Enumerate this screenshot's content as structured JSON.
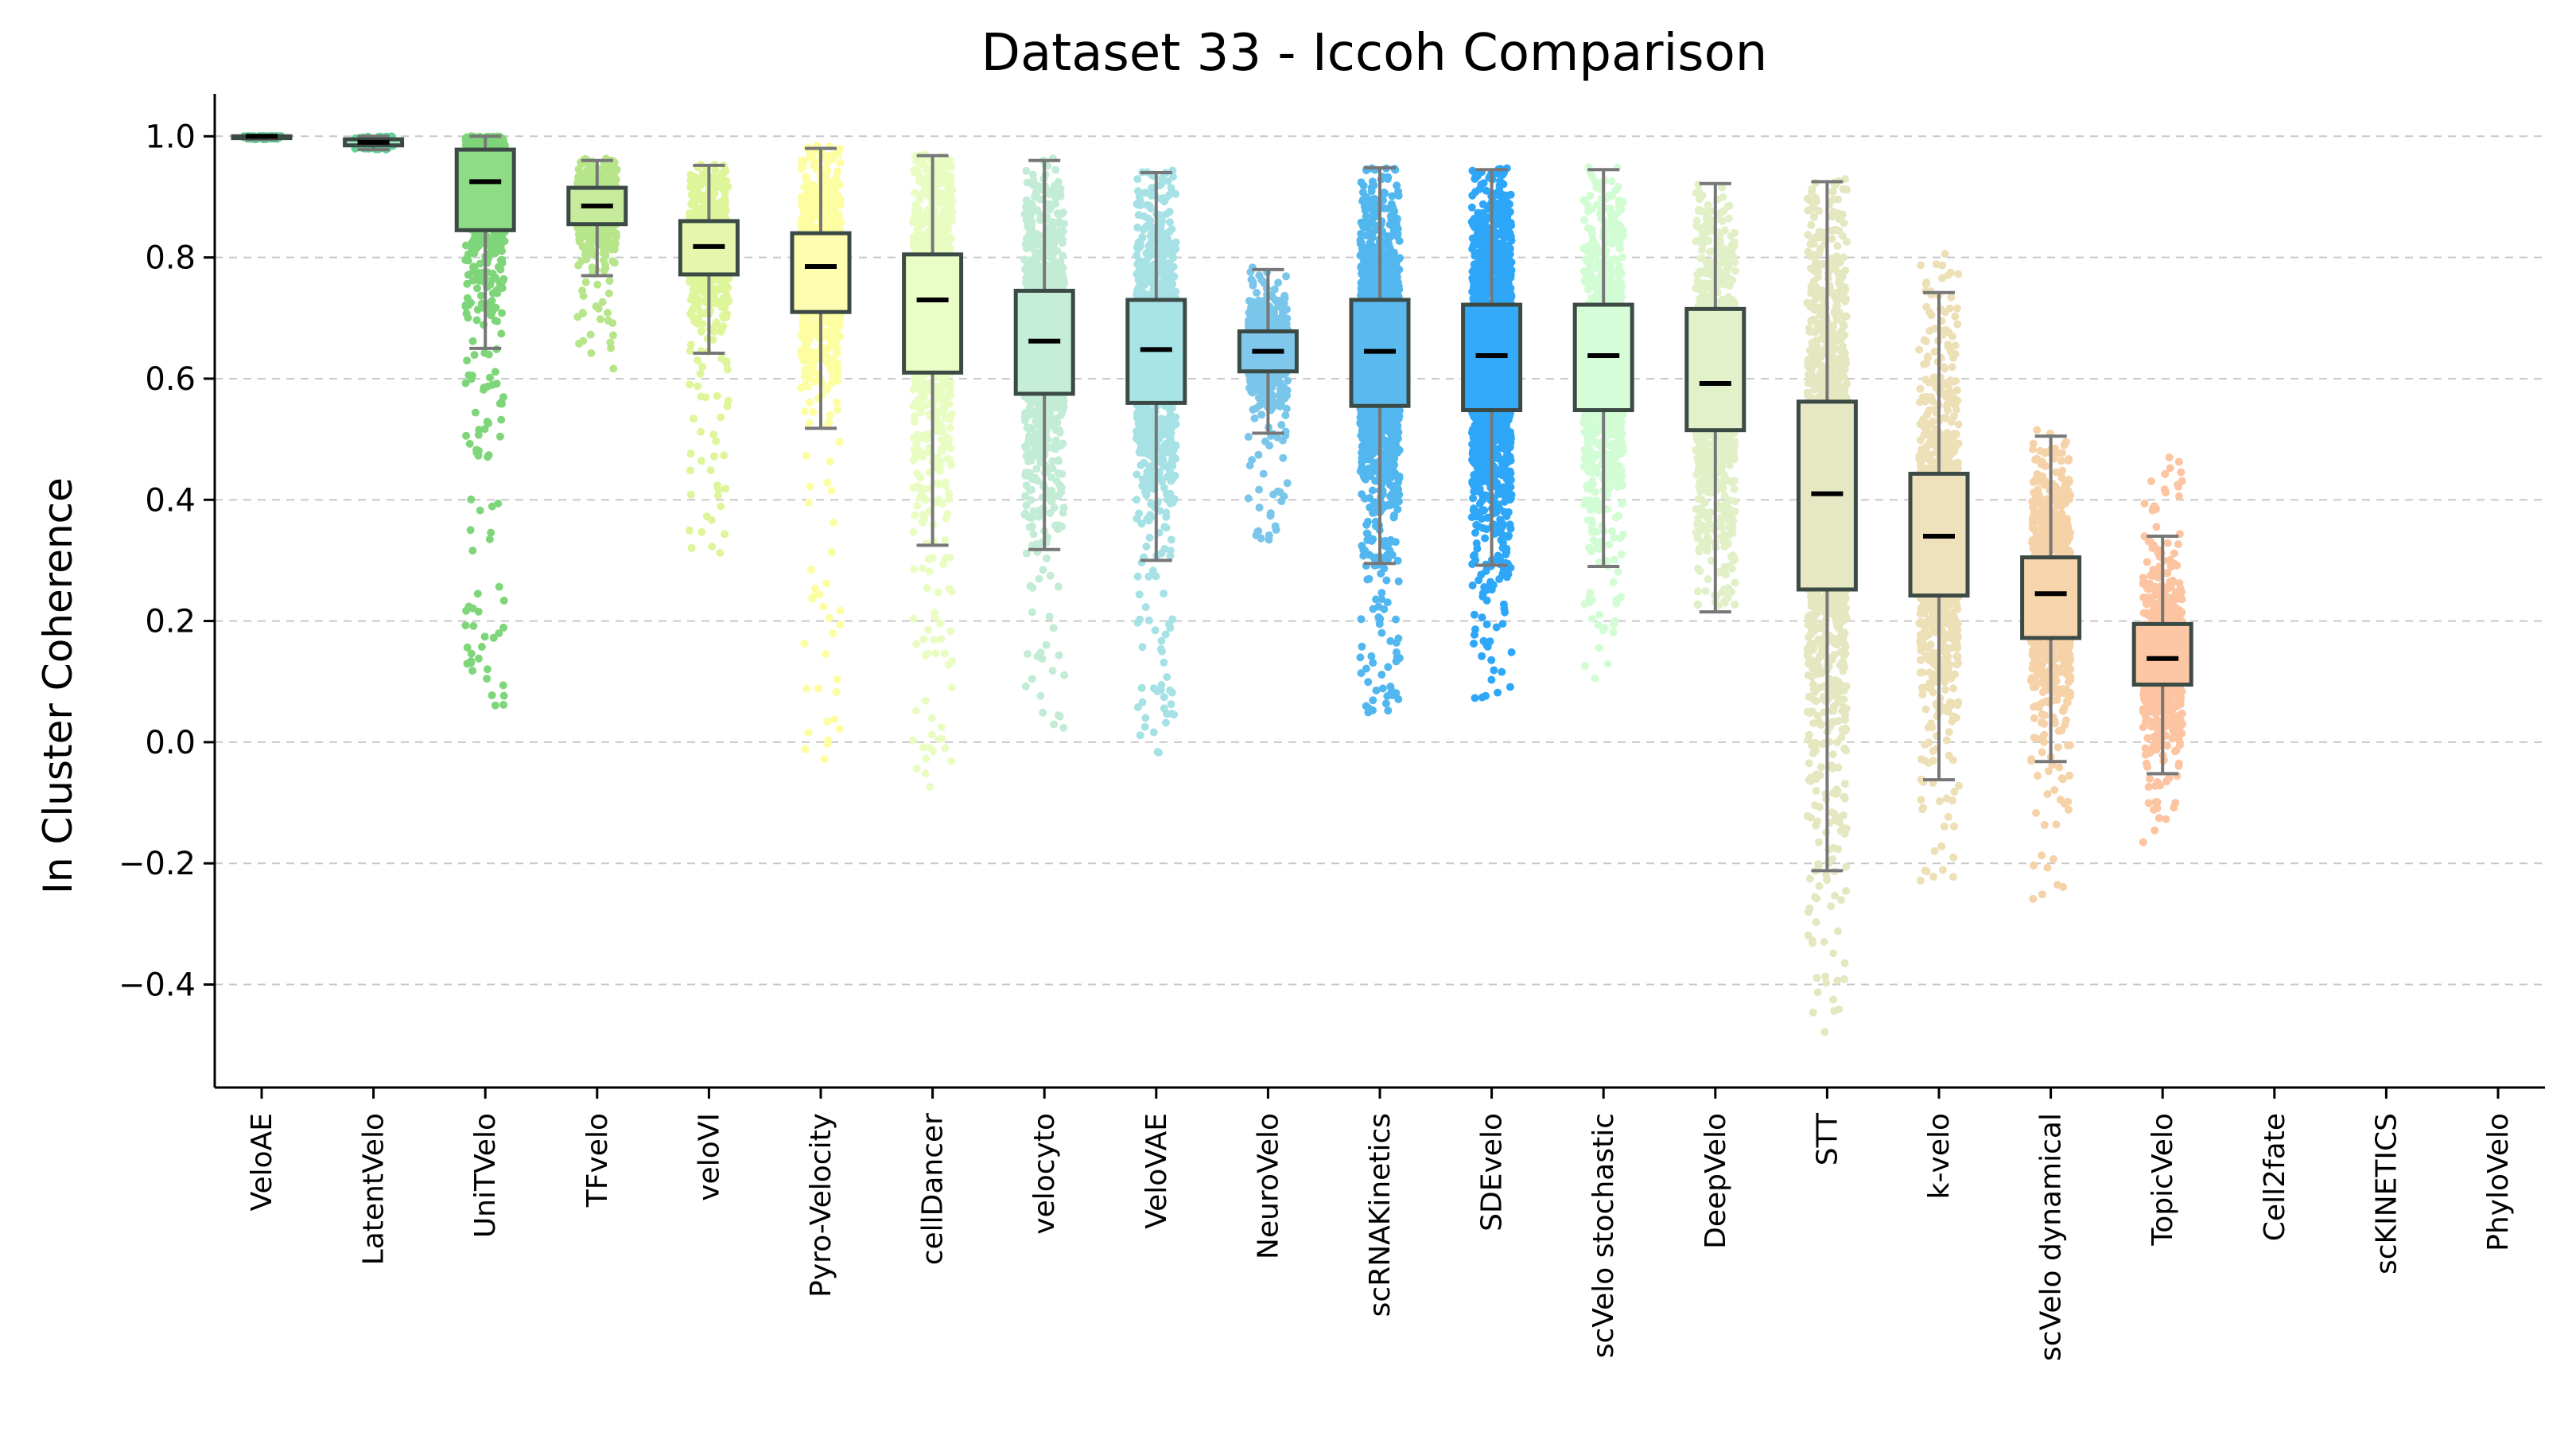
{
  "chart_data": {
    "type": "box",
    "title": "Dataset 33 - Iccoh Comparison",
    "xlabel": "",
    "ylabel": "In Cluster Coherence",
    "ylim": [
      -0.57,
      1.07
    ],
    "yticks": [
      1.0,
      0.8,
      0.6,
      0.4,
      0.2,
      0.0,
      -0.2,
      -0.4
    ],
    "ytick_labels": [
      "1.0",
      "0.8",
      "0.6",
      "0.4",
      "0.2",
      "0.0",
      "−0.2",
      "−0.4"
    ],
    "grid": "horizontal-dashed",
    "series": [
      {
        "name": "VeloAE",
        "color": "#5cc691",
        "box_color": "#9be3b8",
        "has_data": true,
        "median": 1.0,
        "q1": 0.997,
        "q3": 1.0,
        "whisker_low": 0.995,
        "whisker_high": 1.0,
        "points_min": 0.995,
        "points_max": 1.0,
        "n": 80
      },
      {
        "name": "LatentVelo",
        "color": "#64d296",
        "box_color": "#a3e8bf",
        "has_data": true,
        "median": 0.99,
        "q1": 0.985,
        "q3": 0.995,
        "whisker_low": 0.978,
        "whisker_high": 1.0,
        "points_min": 0.978,
        "points_max": 1.0,
        "n": 120
      },
      {
        "name": "UniTVelo",
        "color": "#7fd67a",
        "box_color": "#8edc86",
        "has_data": true,
        "median": 0.925,
        "q1": 0.845,
        "q3": 0.978,
        "whisker_low": 0.65,
        "whisker_high": 1.0,
        "points_min": 0.06,
        "points_max": 1.0,
        "n": 700
      },
      {
        "name": "TFvelo",
        "color": "#b7e58a",
        "box_color": "#c6eb9c",
        "has_data": true,
        "median": 0.885,
        "q1": 0.855,
        "q3": 0.915,
        "whisker_low": 0.77,
        "whisker_high": 0.96,
        "points_min": 0.61,
        "points_max": 0.965,
        "n": 450
      },
      {
        "name": "veloVI",
        "color": "#def59a",
        "box_color": "#e6f7ad",
        "has_data": true,
        "median": 0.818,
        "q1": 0.772,
        "q3": 0.86,
        "whisker_low": 0.642,
        "whisker_high": 0.952,
        "points_min": 0.3,
        "points_max": 0.955,
        "n": 550
      },
      {
        "name": "Pyro-Velocity",
        "color": "#fdfda1",
        "box_color": "#fefdb0",
        "has_data": true,
        "median": 0.785,
        "q1": 0.71,
        "q3": 0.84,
        "whisker_low": 0.518,
        "whisker_high": 0.98,
        "points_min": -0.045,
        "points_max": 0.985,
        "n": 700
      },
      {
        "name": "cellDancer",
        "color": "#e9fdc3",
        "box_color": "#eafdc6",
        "has_data": true,
        "median": 0.73,
        "q1": 0.61,
        "q3": 0.805,
        "whisker_low": 0.325,
        "whisker_high": 0.968,
        "points_min": -0.075,
        "points_max": 0.97,
        "n": 800
      },
      {
        "name": "velocyto",
        "color": "#c2ecd5",
        "box_color": "#c6edd8",
        "has_data": true,
        "median": 0.662,
        "q1": 0.575,
        "q3": 0.745,
        "whisker_low": 0.318,
        "whisker_high": 0.96,
        "points_min": 0.015,
        "points_max": 0.965,
        "n": 900
      },
      {
        "name": "VeloVAE",
        "color": "#a6e2e5",
        "box_color": "#a8e3e6",
        "has_data": true,
        "median": 0.648,
        "q1": 0.56,
        "q3": 0.73,
        "whisker_low": 0.3,
        "whisker_high": 0.94,
        "points_min": -0.02,
        "points_max": 0.945,
        "n": 1000
      },
      {
        "name": "NeuroVelo",
        "color": "#7ac6ea",
        "box_color": "#7fc8ec",
        "has_data": true,
        "median": 0.645,
        "q1": 0.612,
        "q3": 0.678,
        "whisker_low": 0.51,
        "whisker_high": 0.78,
        "points_min": 0.33,
        "points_max": 0.785,
        "n": 500
      },
      {
        "name": "scRNAKinetics",
        "color": "#52b7ef",
        "box_color": "#5ab9ef",
        "has_data": true,
        "median": 0.645,
        "q1": 0.555,
        "q3": 0.73,
        "whisker_low": 0.295,
        "whisker_high": 0.948,
        "points_min": 0.045,
        "points_max": 0.95,
        "n": 1400
      },
      {
        "name": "SDEvelo",
        "color": "#2ea7f8",
        "box_color": "#35aafa",
        "has_data": true,
        "median": 0.638,
        "q1": 0.548,
        "q3": 0.722,
        "whisker_low": 0.292,
        "whisker_high": 0.945,
        "points_min": 0.055,
        "points_max": 0.95,
        "n": 1600
      },
      {
        "name": "scVelo stochastic",
        "color": "#d2fdd4",
        "box_color": "#d6fcd8",
        "has_data": true,
        "median": 0.638,
        "q1": 0.548,
        "q3": 0.722,
        "whisker_low": 0.29,
        "whisker_high": 0.945,
        "points_min": 0.055,
        "points_max": 0.95,
        "n": 900
      },
      {
        "name": "DeepVelo",
        "color": "#e1f0c6",
        "box_color": "#e3f1ca",
        "has_data": true,
        "median": 0.592,
        "q1": 0.515,
        "q3": 0.715,
        "whisker_low": 0.215,
        "whisker_high": 0.922,
        "points_min": 0.215,
        "points_max": 0.925,
        "n": 800
      },
      {
        "name": "STT",
        "color": "#e4e7c0",
        "box_color": "#e6e8c4",
        "has_data": true,
        "median": 0.41,
        "q1": 0.252,
        "q3": 0.562,
        "whisker_low": -0.212,
        "whisker_high": 0.925,
        "points_min": -0.49,
        "points_max": 0.93,
        "n": 1200
      },
      {
        "name": "k-velo",
        "color": "#eddfb6",
        "box_color": "#efe1bb",
        "has_data": true,
        "median": 0.34,
        "q1": 0.242,
        "q3": 0.443,
        "whisker_low": -0.062,
        "whisker_high": 0.742,
        "points_min": -0.235,
        "points_max": 0.81,
        "n": 900
      },
      {
        "name": "scVelo dynamical",
        "color": "#f5d2a7",
        "box_color": "#f6d5ad",
        "has_data": true,
        "median": 0.245,
        "q1": 0.172,
        "q3": 0.305,
        "whisker_low": -0.032,
        "whisker_high": 0.505,
        "points_min": -0.27,
        "points_max": 0.545,
        "n": 900
      },
      {
        "name": "TopicVelo",
        "color": "#fcc4a0",
        "box_color": "#fdc6a4",
        "has_data": true,
        "median": 0.138,
        "q1": 0.095,
        "q3": 0.195,
        "whisker_low": -0.052,
        "whisker_high": 0.34,
        "points_min": -0.17,
        "points_max": 0.48,
        "n": 700
      },
      {
        "name": "Cell2fate",
        "color": "#cccccc",
        "box_color": "#cccccc",
        "has_data": false
      },
      {
        "name": "scKINETICS",
        "color": "#cccccc",
        "box_color": "#cccccc",
        "has_data": false
      },
      {
        "name": "PhyloVelo",
        "color": "#cccccc",
        "box_color": "#cccccc",
        "has_data": false
      }
    ]
  }
}
